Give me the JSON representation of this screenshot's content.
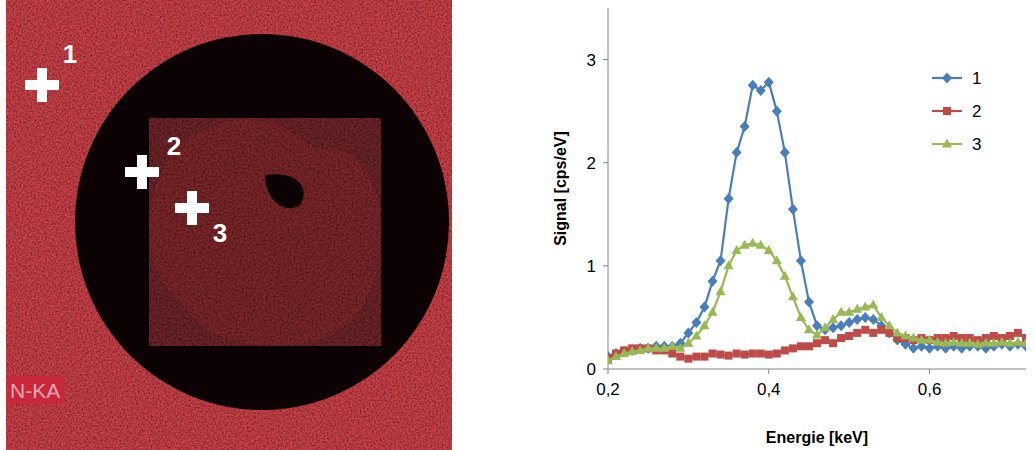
{
  "map": {
    "element_label": "N-KA",
    "points": [
      "1",
      "2",
      "3"
    ]
  },
  "chart_data": {
    "type": "line",
    "x_label": "Energie [keV]",
    "y_label": "Signal [cps/eV]",
    "x": [
      0.2,
      0.21,
      0.22,
      0.23,
      0.24,
      0.25,
      0.26,
      0.27,
      0.28,
      0.29,
      0.3,
      0.31,
      0.32,
      0.33,
      0.34,
      0.35,
      0.36,
      0.37,
      0.38,
      0.39,
      0.4,
      0.41,
      0.42,
      0.43,
      0.44,
      0.45,
      0.46,
      0.47,
      0.48,
      0.49,
      0.5,
      0.51,
      0.52,
      0.53,
      0.54,
      0.55,
      0.56,
      0.57,
      0.58,
      0.59,
      0.6,
      0.61,
      0.62,
      0.63,
      0.64,
      0.65,
      0.66,
      0.67,
      0.68,
      0.69,
      0.7,
      0.71,
      0.72
    ],
    "series": [
      {
        "name": "1",
        "color": "#4a7ebb",
        "marker": "diamond",
        "values": [
          0.12,
          0.15,
          0.17,
          0.18,
          0.2,
          0.2,
          0.22,
          0.22,
          0.22,
          0.25,
          0.35,
          0.45,
          0.6,
          0.85,
          1.05,
          1.65,
          2.1,
          2.35,
          2.75,
          2.7,
          2.78,
          2.5,
          2.1,
          1.55,
          1.05,
          0.65,
          0.42,
          0.38,
          0.4,
          0.42,
          0.45,
          0.48,
          0.5,
          0.48,
          0.42,
          0.35,
          0.28,
          0.24,
          0.2,
          0.22,
          0.2,
          0.22,
          0.2,
          0.22,
          0.2,
          0.22,
          0.22,
          0.2,
          0.22,
          0.24,
          0.22,
          0.24,
          0.22
        ]
      },
      {
        "name": "2",
        "color": "#be4b48",
        "marker": "square",
        "values": [
          0.1,
          0.15,
          0.18,
          0.2,
          0.2,
          0.2,
          0.18,
          0.18,
          0.15,
          0.12,
          0.1,
          0.12,
          0.12,
          0.15,
          0.14,
          0.13,
          0.15,
          0.14,
          0.15,
          0.15,
          0.14,
          0.15,
          0.18,
          0.2,
          0.22,
          0.22,
          0.25,
          0.28,
          0.25,
          0.3,
          0.32,
          0.35,
          0.38,
          0.35,
          0.38,
          0.35,
          0.3,
          0.3,
          0.28,
          0.3,
          0.28,
          0.3,
          0.3,
          0.32,
          0.3,
          0.3,
          0.28,
          0.3,
          0.32,
          0.3,
          0.32,
          0.35,
          0.3
        ]
      },
      {
        "name": "3",
        "color": "#98b954",
        "marker": "triangle",
        "values": [
          0.08,
          0.12,
          0.15,
          0.17,
          0.18,
          0.2,
          0.2,
          0.2,
          0.22,
          0.2,
          0.25,
          0.32,
          0.42,
          0.55,
          0.75,
          1.0,
          1.15,
          1.2,
          1.22,
          1.2,
          1.15,
          1.05,
          0.9,
          0.7,
          0.5,
          0.38,
          0.33,
          0.4,
          0.48,
          0.55,
          0.55,
          0.58,
          0.6,
          0.62,
          0.5,
          0.42,
          0.35,
          0.32,
          0.3,
          0.28,
          0.28,
          0.26,
          0.25,
          0.26,
          0.25,
          0.25,
          0.24,
          0.25,
          0.25,
          0.26,
          0.25,
          0.26,
          0.25
        ]
      }
    ],
    "xlim": [
      0.2,
      0.72
    ],
    "ylim": [
      0,
      3.5
    ],
    "xticks": [
      {
        "value": 0.2,
        "label": "0,2"
      },
      {
        "value": 0.4,
        "label": "0,4"
      },
      {
        "value": 0.6,
        "label": "0,6"
      }
    ],
    "yticks": [
      0,
      1,
      2,
      3
    ],
    "grid": false,
    "legend": "upper right"
  }
}
